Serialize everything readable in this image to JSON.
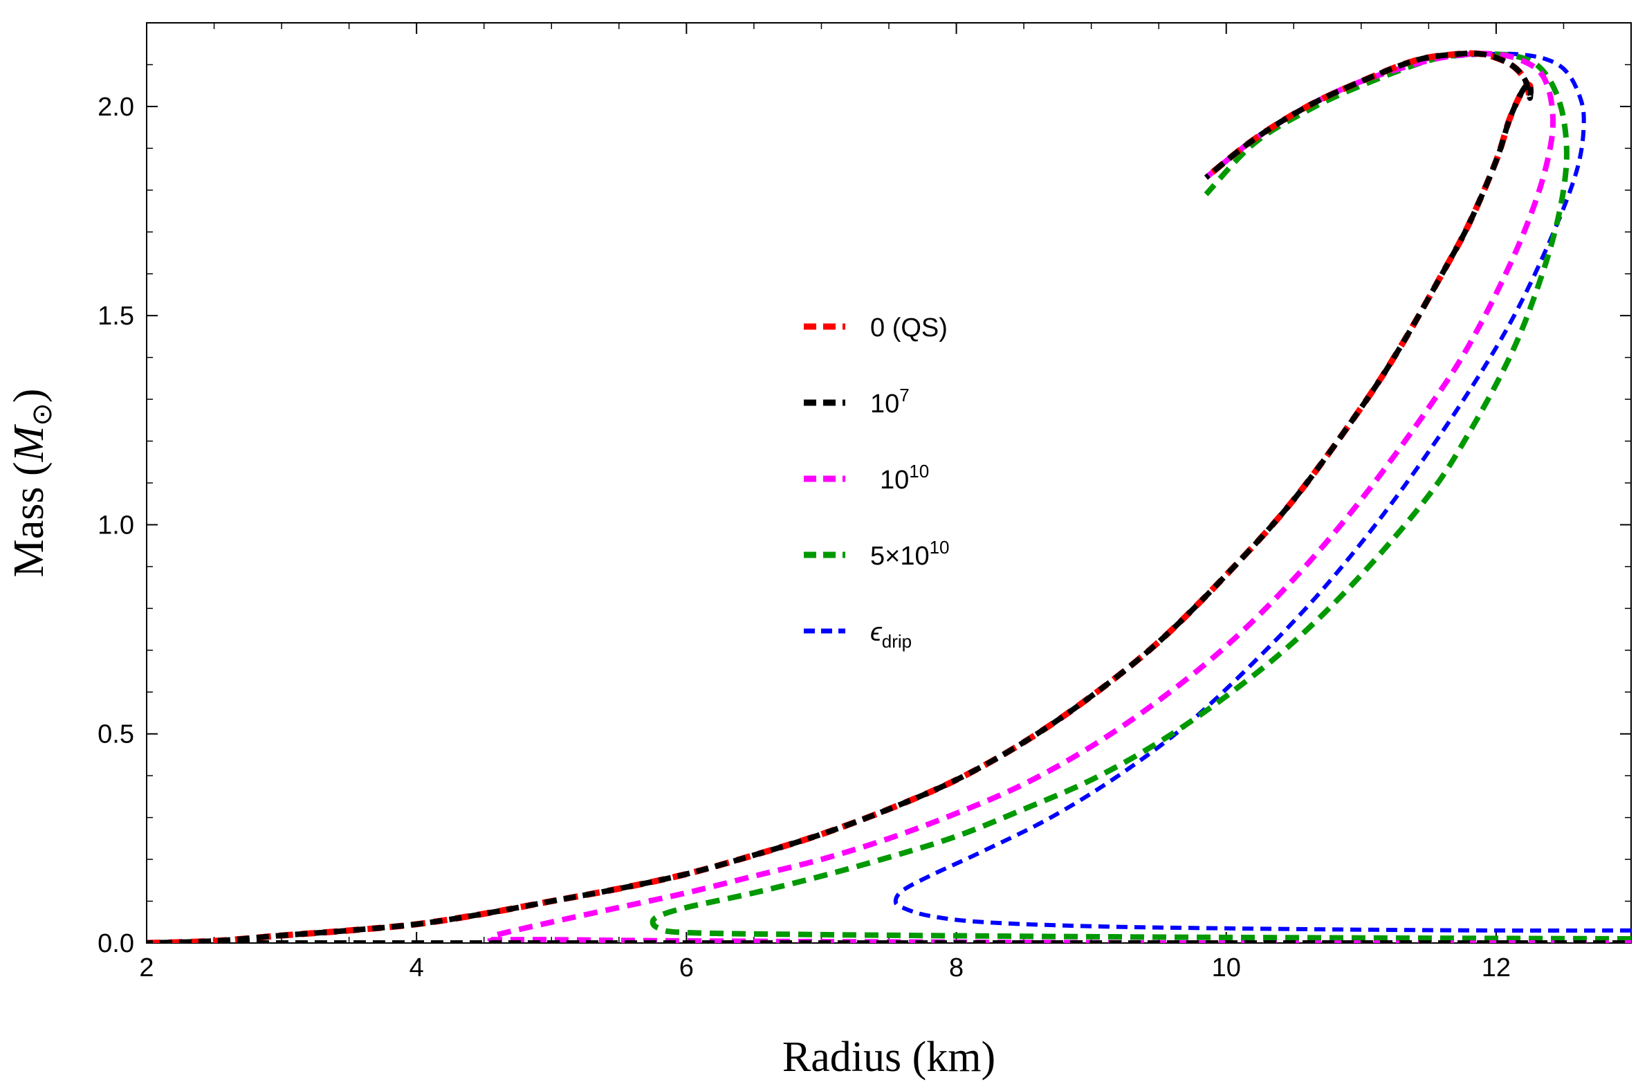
{
  "chart_data": {
    "type": "line",
    "title": "",
    "xlabel": "Radius (km)",
    "ylabel": "Mass (M⊙)",
    "ylabel_prefix": "Mass (",
    "ylabel_symbol": "M",
    "ylabel_sub": "⊙",
    "ylabel_suffix": ")",
    "xlim": [
      2,
      13
    ],
    "ylim": [
      0,
      2.2
    ],
    "xticks": [
      "2",
      "4",
      "6",
      "8",
      "10",
      "12"
    ],
    "yticks": [
      "0.0",
      "0.5",
      "1.0",
      "1.5",
      "2.0"
    ],
    "legend_position": "center",
    "series": [
      {
        "name": "0 (QS)",
        "legend_base": "0 (QS)",
        "legend_sup": "",
        "color": "#ff0000",
        "x": [
          2.0,
          2.5,
          3.0,
          3.5,
          4.0,
          4.5,
          5.0,
          5.5,
          6.0,
          6.5,
          7.0,
          7.5,
          8.0,
          8.5,
          9.0,
          9.5,
          10.0,
          10.5,
          11.0,
          11.3,
          11.6,
          11.8,
          12.0,
          12.1,
          12.2,
          12.25,
          12.25,
          12.22,
          12.15,
          12.05,
          11.9,
          11.7,
          11.4,
          11.0,
          10.6,
          10.2,
          9.85
        ],
        "y": [
          0.0,
          0.005,
          0.018,
          0.03,
          0.045,
          0.07,
          0.1,
          0.13,
          0.165,
          0.21,
          0.26,
          0.32,
          0.39,
          0.48,
          0.59,
          0.72,
          0.88,
          1.06,
          1.28,
          1.43,
          1.6,
          1.72,
          1.87,
          1.97,
          2.04,
          2.05,
          2.02,
          2.06,
          2.09,
          2.11,
          2.125,
          2.125,
          2.11,
          2.06,
          2.0,
          1.92,
          1.83
        ]
      },
      {
        "name": "10^7",
        "legend_base": "10",
        "legend_sup": "7",
        "color": "#000000",
        "x": [
          2.0,
          2.5,
          3.0,
          3.5,
          4.0,
          4.5,
          5.0,
          5.5,
          6.0,
          6.5,
          7.0,
          7.5,
          8.0,
          8.5,
          9.0,
          9.5,
          10.0,
          10.5,
          11.0,
          11.3,
          11.6,
          11.8,
          12.0,
          12.1,
          12.2,
          12.25,
          12.25,
          12.22,
          12.15,
          12.05,
          11.9,
          11.7,
          11.4,
          11.0,
          10.6,
          10.2,
          9.85
        ],
        "y": [
          0.0,
          0.005,
          0.018,
          0.03,
          0.045,
          0.07,
          0.1,
          0.13,
          0.165,
          0.21,
          0.26,
          0.32,
          0.39,
          0.48,
          0.59,
          0.72,
          0.88,
          1.06,
          1.28,
          1.43,
          1.6,
          1.72,
          1.87,
          1.97,
          2.04,
          2.05,
          2.02,
          2.06,
          2.09,
          2.11,
          2.125,
          2.125,
          2.11,
          2.06,
          2.0,
          1.92,
          1.83
        ],
        "tail_x": [
          2.0,
          13.0
        ],
        "tail_y": [
          0.0,
          0.0
        ]
      },
      {
        "name": "10^10",
        "legend_base": "10",
        "legend_sup": "10",
        "color": "#ff00ff",
        "x": [
          13.0,
          10.0,
          8.0,
          6.0,
          5.0,
          4.6,
          4.55,
          4.6,
          5.0,
          5.5,
          6.0,
          6.5,
          7.0,
          7.5,
          8.0,
          8.5,
          9.0,
          9.5,
          10.0,
          10.5,
          11.0,
          11.5,
          11.8,
          12.1,
          12.3,
          12.4,
          12.42,
          12.38,
          12.3,
          12.15,
          12.0,
          11.8,
          11.5,
          11.0,
          10.6,
          10.2,
          9.85
        ],
        "y": [
          0.0,
          0.0,
          0.002,
          0.005,
          0.008,
          0.008,
          0.01,
          0.02,
          0.05,
          0.085,
          0.12,
          0.16,
          0.2,
          0.25,
          0.31,
          0.38,
          0.47,
          0.58,
          0.71,
          0.87,
          1.06,
          1.28,
          1.43,
          1.62,
          1.78,
          1.9,
          1.98,
          2.05,
          2.09,
          2.115,
          2.125,
          2.125,
          2.11,
          2.06,
          2.0,
          1.92,
          1.83
        ]
      },
      {
        "name": "5×10^10",
        "legend_base": "5×10",
        "legend_sup": "10",
        "color": "#009900",
        "x": [
          13.0,
          11.0,
          9.0,
          7.0,
          6.0,
          5.8,
          5.75,
          5.8,
          6.0,
          6.5,
          7.0,
          7.5,
          8.0,
          8.5,
          9.0,
          9.5,
          10.0,
          10.5,
          11.0,
          11.5,
          11.8,
          12.1,
          12.3,
          12.45,
          12.52,
          12.5,
          12.42,
          12.3,
          12.15,
          12.0,
          11.8,
          11.5,
          11.0,
          10.6,
          10.2,
          9.85
        ],
        "y": [
          0.01,
          0.012,
          0.015,
          0.02,
          0.025,
          0.035,
          0.05,
          0.065,
          0.085,
          0.12,
          0.16,
          0.205,
          0.255,
          0.32,
          0.39,
          0.48,
          0.59,
          0.72,
          0.88,
          1.07,
          1.22,
          1.4,
          1.56,
          1.72,
          1.86,
          1.97,
          2.05,
          2.1,
          2.12,
          2.125,
          2.125,
          2.11,
          2.05,
          1.99,
          1.91,
          1.79
        ]
      },
      {
        "name": "ε_drip",
        "legend_base": "ϵ",
        "legend_sub": "drip",
        "color": "#0000ff",
        "x": [
          13.0,
          12.0,
          11.0,
          10.0,
          9.0,
          8.2,
          7.8,
          7.6,
          7.55,
          7.6,
          7.8,
          8.2,
          8.7,
          9.2,
          9.7,
          10.2,
          10.7,
          11.2,
          11.7,
          12.1,
          12.4,
          12.6,
          12.65,
          12.6,
          12.5,
          12.35,
          12.15,
          11.95,
          11.7,
          11.4
        ],
        "y": [
          0.03,
          0.03,
          0.032,
          0.035,
          0.04,
          0.05,
          0.065,
          0.085,
          0.1,
          0.125,
          0.16,
          0.22,
          0.3,
          0.4,
          0.52,
          0.67,
          0.84,
          1.04,
          1.27,
          1.48,
          1.68,
          1.85,
          1.97,
          2.04,
          2.09,
          2.115,
          2.125,
          2.125,
          2.12,
          2.11
        ]
      }
    ]
  }
}
